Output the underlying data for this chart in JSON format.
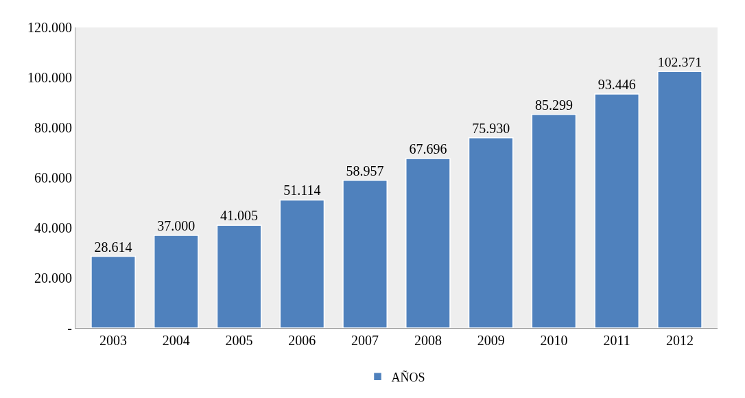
{
  "chart_data": {
    "type": "bar",
    "categories": [
      "2003",
      "2004",
      "2005",
      "2006",
      "2007",
      "2008",
      "2009",
      "2010",
      "2011",
      "2012"
    ],
    "series": [
      {
        "name": "AÑOS",
        "color": "#4f81bd",
        "values": [
          28614,
          37000,
          41005,
          51114,
          58957,
          67696,
          75930,
          85299,
          93446,
          102371
        ],
        "value_labels": [
          "28.614",
          "37.000",
          "41.005",
          "51.114",
          "58.957",
          "67.696",
          "75.930",
          "85.299",
          "93.446",
          "102.371"
        ]
      }
    ],
    "ylim": [
      0,
      120000
    ],
    "yticks": [
      {
        "value": 0,
        "label": "-"
      },
      {
        "value": 20000,
        "label": "20.000"
      },
      {
        "value": 40000,
        "label": "40.000"
      },
      {
        "value": 60000,
        "label": "60.000"
      },
      {
        "value": 80000,
        "label": "80.000"
      },
      {
        "value": 100000,
        "label": "100.000"
      },
      {
        "value": 120000,
        "label": "120.000"
      }
    ],
    "grid": false,
    "legend": "bottom"
  }
}
